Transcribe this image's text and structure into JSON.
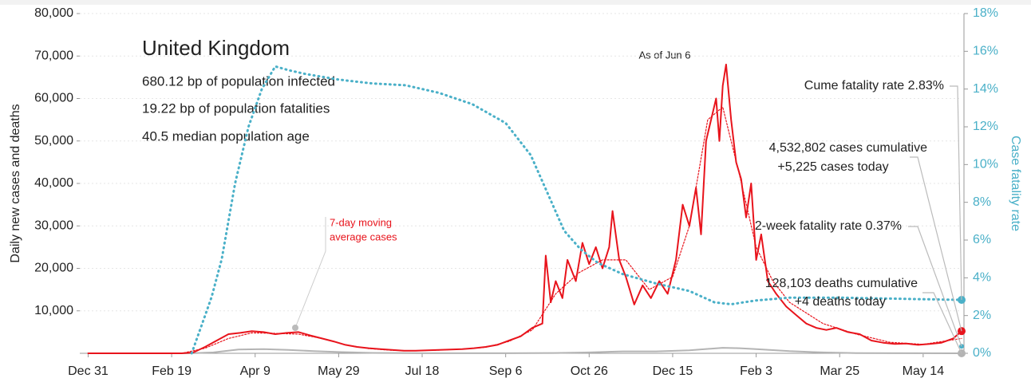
{
  "chart_data": {
    "type": "line",
    "title": "United Kingdom",
    "subtitle_lines": [
      "680.12 bp of population infected",
      "19.22 bp of population fatalities",
      "40.5 median population age"
    ],
    "y_label": "Daily new cases and deaths",
    "y2_label": "Case fatality rate",
    "as_of": "As of Jun 6",
    "annotations": {
      "cume_fatality": "Cume fatality rate 2.83%",
      "cases_cumulative": "4,532,802 cases cumulative",
      "cases_today": "+5,225 cases today",
      "two_week_fatality": "2-week fatality rate 0.37%",
      "deaths_cumulative": "128,103 deaths cumulative",
      "deaths_today": "+4 deaths today",
      "moving_average": [
        "7-day moving",
        "average cases"
      ]
    },
    "two_week_fatality_rate": 0.37,
    "xlim": [
      -5,
      523
    ],
    "xticks": [
      {
        "value": 0,
        "label": "Dec 31"
      },
      {
        "value": 50,
        "label": "Feb 19"
      },
      {
        "value": 100,
        "label": "Apr 9"
      },
      {
        "value": 150,
        "label": "May 29"
      },
      {
        "value": 200,
        "label": "Jul 18"
      },
      {
        "value": 250,
        "label": "Sep 6"
      },
      {
        "value": 300,
        "label": "Oct 26"
      },
      {
        "value": 350,
        "label": "Dec 15"
      },
      {
        "value": 400,
        "label": "Feb 3"
      },
      {
        "value": 450,
        "label": "Mar 25"
      },
      {
        "value": 500,
        "label": "May 14"
      }
    ],
    "ylim": [
      0,
      80000
    ],
    "yticks": [
      {
        "value": 10000,
        "label": "10,000"
      },
      {
        "value": 20000,
        "label": "20,000"
      },
      {
        "value": 30000,
        "label": "30,000"
      },
      {
        "value": 40000,
        "label": "40,000"
      },
      {
        "value": 50000,
        "label": "50,000"
      },
      {
        "value": 60000,
        "label": "60,000"
      },
      {
        "value": 70000,
        "label": "70,000"
      },
      {
        "value": 80000,
        "label": "80,000"
      }
    ],
    "y2lim": [
      0,
      18
    ],
    "y2ticks": [
      {
        "value": 0,
        "label": "0%"
      },
      {
        "value": 2,
        "label": "2%"
      },
      {
        "value": 4,
        "label": "4%"
      },
      {
        "value": 6,
        "label": "6%"
      },
      {
        "value": 8,
        "label": "8%"
      },
      {
        "value": 10,
        "label": "10%"
      },
      {
        "value": 12,
        "label": "12%"
      },
      {
        "value": 14,
        "label": "14%"
      },
      {
        "value": 16,
        "label": "16%"
      },
      {
        "value": 18,
        "label": "18%"
      }
    ],
    "series": [
      {
        "name": "Daily cases",
        "color": "#e8141c",
        "style": "solid",
        "x": [
          0,
          56,
          63,
          70,
          77,
          84,
          91,
          98,
          105,
          112,
          119,
          126,
          133,
          140,
          147,
          154,
          161,
          168,
          175,
          182,
          189,
          196,
          203,
          210,
          217,
          224,
          231,
          238,
          245,
          252,
          259,
          266,
          272,
          274,
          277,
          280,
          284,
          287,
          292,
          296,
          300,
          304,
          308,
          312,
          314,
          318,
          322,
          327,
          332,
          337,
          342,
          347,
          352,
          356,
          360,
          364,
          367,
          370,
          373,
          376,
          378,
          380,
          382,
          385,
          388,
          391,
          394,
          397,
          400,
          403,
          407,
          412,
          418,
          424,
          430,
          436,
          442,
          448,
          455,
          462,
          469,
          476,
          483,
          490,
          497,
          504,
          511,
          518,
          523
        ],
        "values": [
          0,
          0,
          200,
          1500,
          3000,
          4500,
          4800,
          5200,
          5000,
          4500,
          4800,
          5000,
          4200,
          3500,
          2800,
          2000,
          1500,
          1200,
          1000,
          800,
          600,
          600,
          700,
          800,
          900,
          1000,
          1200,
          1500,
          2000,
          3000,
          4000,
          6000,
          7000,
          23000,
          12000,
          17000,
          13000,
          22000,
          17000,
          26000,
          21000,
          25000,
          20000,
          25000,
          33500,
          22000,
          18000,
          11500,
          16000,
          13000,
          17000,
          14000,
          22000,
          35000,
          30000,
          39000,
          28000,
          50000,
          55000,
          60000,
          50000,
          63000,
          68000,
          55000,
          45000,
          41000,
          32000,
          40000,
          22000,
          28000,
          17000,
          14000,
          11000,
          9000,
          7000,
          6000,
          5500,
          6000,
          5000,
          4500,
          3000,
          2500,
          2200,
          2300,
          2000,
          2200,
          2500,
          3500,
          5225
        ]
      },
      {
        "name": "7-day moving average cases",
        "color": "#e8141c",
        "style": "dotted",
        "x": [
          0,
          56,
          70,
          84,
          98,
          112,
          126,
          140,
          154,
          168,
          182,
          196,
          210,
          224,
          238,
          252,
          266,
          280,
          294,
          308,
          322,
          336,
          350,
          360,
          371,
          380,
          390,
          400,
          410,
          420,
          440,
          460,
          480,
          500,
          523
        ],
        "values": [
          0,
          0,
          1200,
          3500,
          4800,
          4700,
          4500,
          3500,
          2000,
          1100,
          700,
          600,
          750,
          1000,
          1400,
          2800,
          5500,
          14000,
          19000,
          22000,
          22000,
          15000,
          18000,
          30000,
          55000,
          58000,
          42000,
          25000,
          17000,
          12000,
          7000,
          4500,
          2600,
          2100,
          3500
        ]
      },
      {
        "name": "Daily deaths",
        "color": "#b4b4b4",
        "style": "solid",
        "x": [
          0,
          60,
          75,
          90,
          105,
          120,
          135,
          150,
          170,
          200,
          250,
          280,
          300,
          320,
          340,
          360,
          380,
          390,
          400,
          420,
          440,
          460,
          490,
          523
        ],
        "values": [
          0,
          0,
          200,
          900,
          1000,
          800,
          500,
          300,
          100,
          20,
          20,
          80,
          200,
          450,
          450,
          700,
          1300,
          1200,
          1000,
          500,
          200,
          50,
          10,
          4
        ]
      },
      {
        "name": "Case fatality rate",
        "color": "#4ab0c8",
        "style": "dotted",
        "axis": "y2",
        "x": [
          62,
          66,
          70,
          74,
          80,
          88,
          96,
          104,
          112,
          120,
          130,
          150,
          170,
          190,
          210,
          230,
          250,
          265,
          275,
          285,
          295,
          305,
          320,
          340,
          360,
          375,
          385,
          400,
          420,
          450,
          490,
          523
        ],
        "values": [
          0,
          1,
          2,
          3,
          5,
          9,
          12,
          14,
          15.2,
          15,
          14.8,
          14.5,
          14.3,
          14.2,
          13.8,
          13.2,
          12.2,
          10.5,
          8.5,
          6.5,
          5.5,
          4.8,
          4.2,
          3.7,
          3.3,
          2.7,
          2.6,
          2.8,
          2.95,
          2.95,
          2.88,
          2.83
        ]
      }
    ]
  }
}
